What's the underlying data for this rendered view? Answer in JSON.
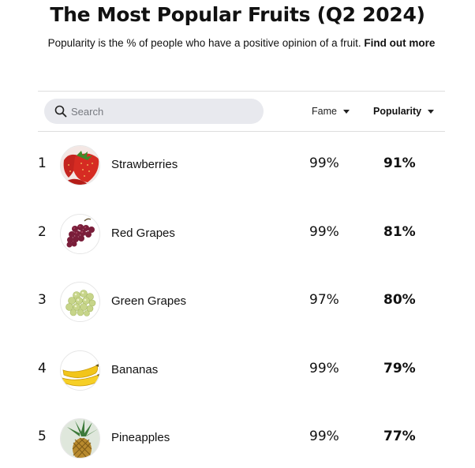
{
  "header": {
    "title": "The Most Popular Fruits (Q2 2024)",
    "subtitle": "Popularity is the % of people who have a positive opinion of a fruit.",
    "link_label": "Find out more"
  },
  "search": {
    "placeholder": "Search",
    "value": ""
  },
  "columns": {
    "fame": "Fame",
    "popularity": "Popularity"
  },
  "rows": [
    {
      "rank": "1",
      "name": "Strawberries",
      "fame": "99%",
      "popularity": "91%",
      "image": "strawberry-image"
    },
    {
      "rank": "2",
      "name": "Red Grapes",
      "fame": "99%",
      "popularity": "81%",
      "image": "red-grapes-image"
    },
    {
      "rank": "3",
      "name": "Green Grapes",
      "fame": "97%",
      "popularity": "80%",
      "image": "green-grapes-image"
    },
    {
      "rank": "4",
      "name": "Bananas",
      "fame": "99%",
      "popularity": "79%",
      "image": "bananas-image"
    },
    {
      "rank": "5",
      "name": "Pineapples",
      "fame": "99%",
      "popularity": "77%",
      "image": "pineapple-image"
    }
  ],
  "colors": {
    "search_bg": "#e8e9ee",
    "divider": "#dddddd",
    "text": "#111111"
  }
}
